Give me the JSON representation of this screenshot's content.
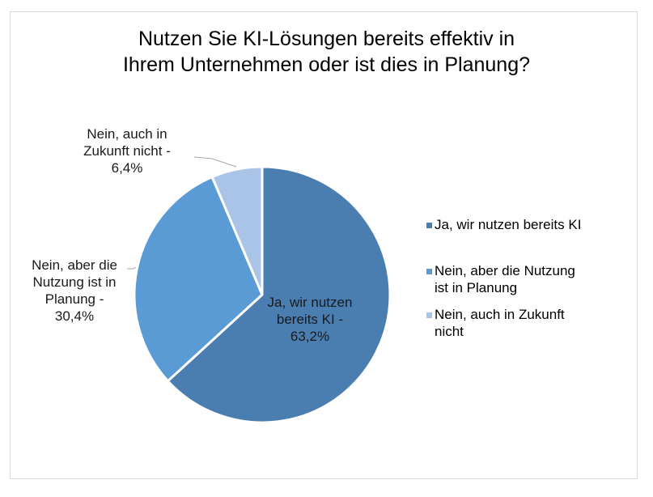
{
  "chart_data": {
    "type": "pie",
    "title": "Nutzen Sie KI-Lösungen bereits effektiv in Ihrem Unternehmen oder ist dies in Planung?",
    "title_lines": [
      "Nutzen Sie KI-Lösungen bereits effektiv in",
      "Ihrem Unternehmen oder ist dies in Planung?"
    ],
    "categories": [
      "Ja, wir nutzen bereits KI",
      "Nein, aber die Nutzung ist in Planung",
      "Nein, auch in Zukunft nicht"
    ],
    "values": [
      63.2,
      30.4,
      6.4
    ],
    "unit": "%",
    "colors": [
      "#4a7eb1",
      "#5b9bd5",
      "#a9c4e6"
    ],
    "data_labels": [
      [
        "Ja, wir nutzen",
        "bereits KI -",
        "63,2%"
      ],
      [
        "Nein, aber die",
        "Nutzung ist in",
        "Planung -",
        "30,4%"
      ],
      [
        "Nein, auch in",
        "Zukunft nicht -",
        "6,4%"
      ]
    ],
    "legend": {
      "position": "right",
      "entries": [
        [
          "Ja, wir nutzen bereits KI"
        ],
        [
          "Nein, aber die Nutzung",
          "ist in Planung"
        ],
        [
          "Nein, auch in Zukunft",
          "nicht"
        ]
      ]
    },
    "start_angle": "12 o'clock",
    "direction": "clockwise"
  }
}
